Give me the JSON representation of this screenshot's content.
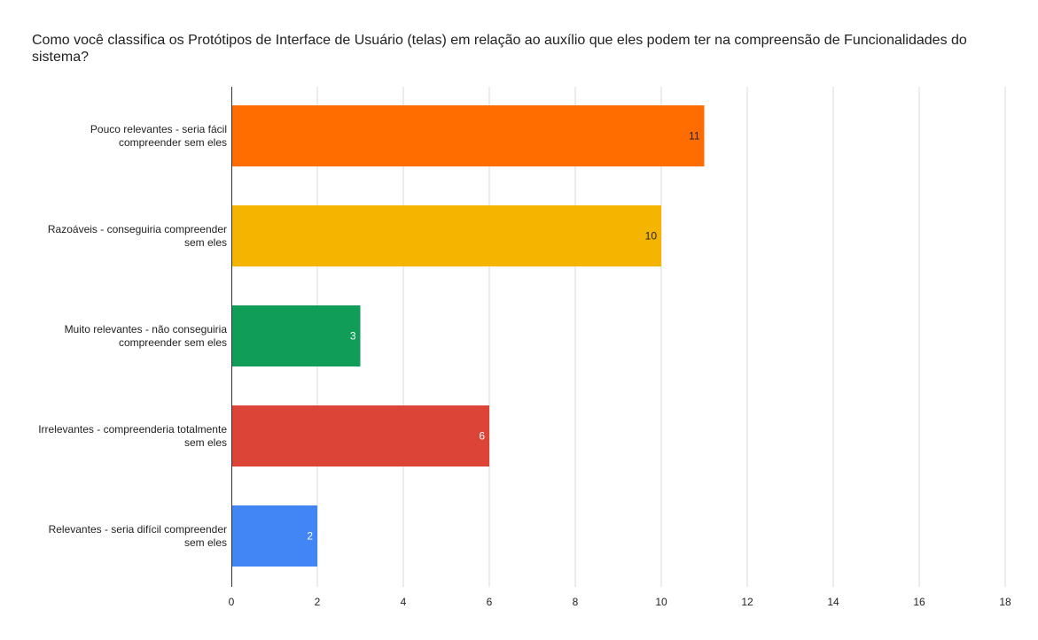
{
  "chart_data": {
    "type": "bar",
    "orientation": "horizontal",
    "title": "Como você classifica os Protótipos de Interface de Usuário (telas) em relação ao auxílio que eles podem ter na compreensão de Funcionalidades do sistema?",
    "categories": [
      [
        "Pouco relevantes - seria fácil",
        "compreender sem eles"
      ],
      [
        "Razoáveis - conseguiria compreender",
        "sem eles"
      ],
      [
        "Muito relevantes - não conseguiria",
        "compreender sem eles"
      ],
      [
        "Irrelevantes - compreenderia totalmente",
        "sem eles"
      ],
      [
        "Relevantes - seria difícil compreender",
        "sem eles"
      ]
    ],
    "values": [
      11,
      10,
      3,
      6,
      2
    ],
    "colors": [
      "#ff6d01",
      "#f4b400",
      "#0f9d58",
      "#db4437",
      "#4285f4"
    ],
    "label_colors": [
      "#222222",
      "#222222",
      "#ffffff",
      "#ffffff",
      "#ffffff"
    ],
    "xlim": [
      0,
      18
    ],
    "xticks": [
      "0",
      "2",
      "4",
      "6",
      "8",
      "10",
      "12",
      "14",
      "16",
      "18"
    ],
    "grid": true,
    "legend": "none"
  }
}
